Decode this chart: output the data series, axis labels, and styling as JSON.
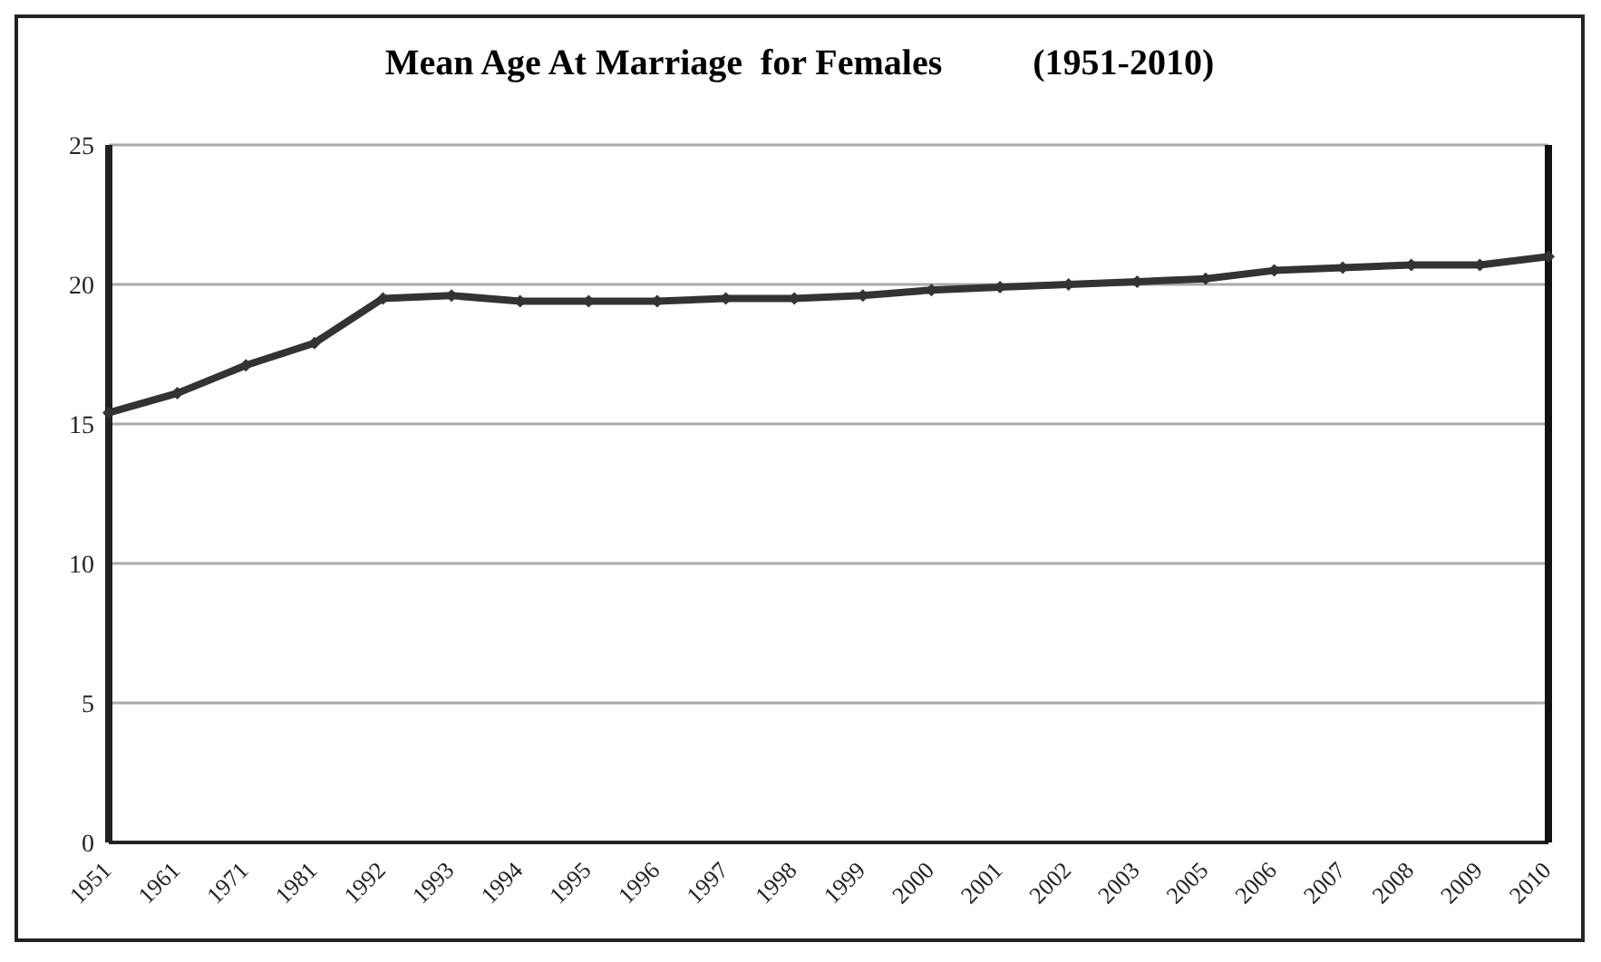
{
  "chart_data": {
    "type": "line",
    "title": "Mean Age At Marriage  for Females          (1951-2010)",
    "categories": [
      "1951",
      "1961",
      "1971",
      "1981",
      "1992",
      "1993",
      "1994",
      "1995",
      "1996",
      "1997",
      "1998",
      "1999",
      "2000",
      "2001",
      "2002",
      "2003",
      "2005",
      "2006",
      "2007",
      "2008",
      "2009",
      "2010"
    ],
    "series": [
      {
        "color": "#333333",
        "values": [
          15.4,
          16.1,
          17.1,
          17.9,
          19.5,
          19.6,
          19.4,
          19.4,
          19.4,
          19.5,
          19.5,
          19.6,
          19.8,
          19.9,
          20.0,
          20.1,
          20.2,
          20.5,
          20.6,
          20.7,
          20.7,
          21.0
        ]
      }
    ],
    "ylim": [
      0,
      25
    ],
    "yticks": [
      0,
      5,
      10,
      15,
      20,
      25
    ],
    "grid": "y",
    "legend": false,
    "marker": "diamond",
    "line_style": "solid"
  }
}
